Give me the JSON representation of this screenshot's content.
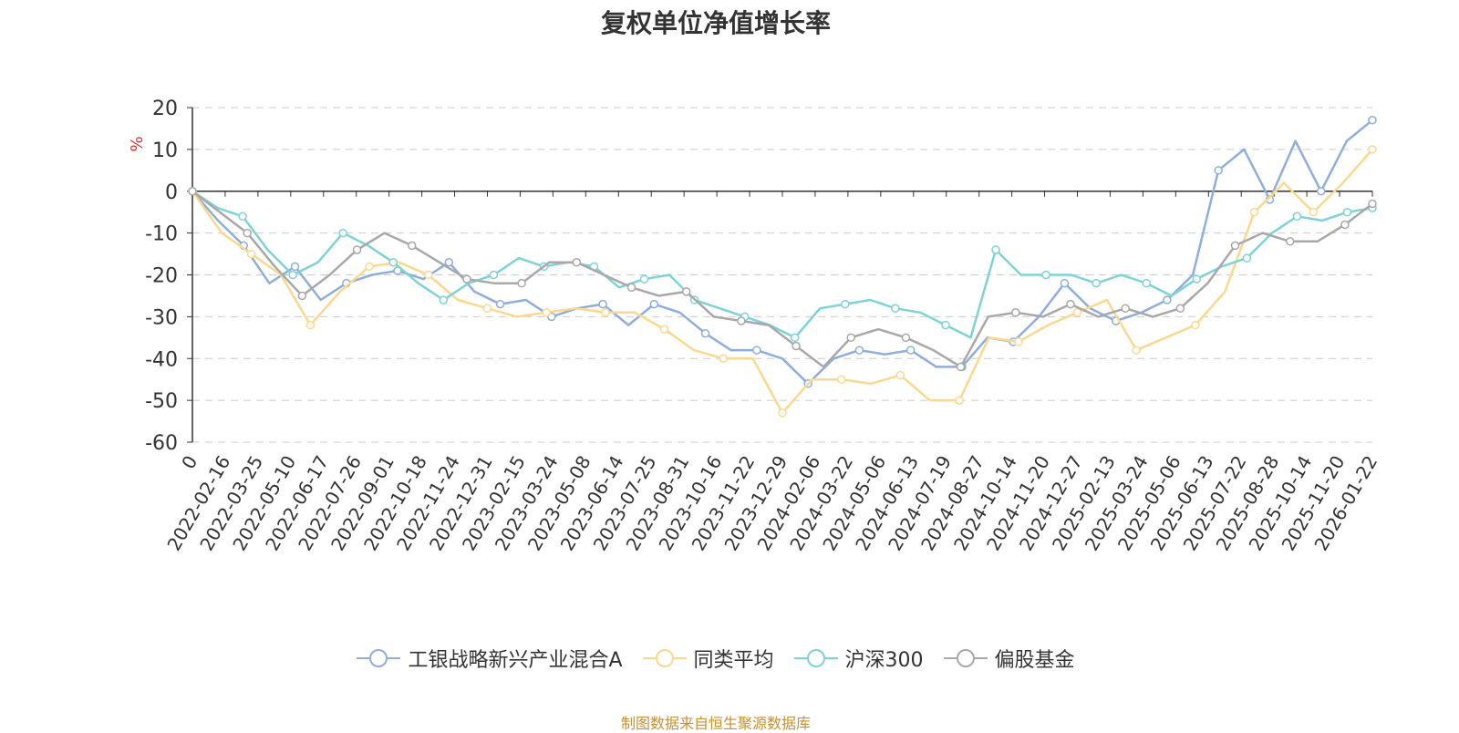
{
  "title": "复权单位净值增长率",
  "source_note": "制图数据来自恒生聚源数据库",
  "chart_data": {
    "type": "line",
    "title": "复权单位净值增长率",
    "ylabel": "%",
    "ylim": [
      -60,
      20
    ],
    "yticks": [
      20,
      10,
      0,
      -10,
      -20,
      -30,
      -40,
      -50,
      -60
    ],
    "grid": true,
    "legend_position": "bottom",
    "x_tick_labels": [
      "0",
      "2022-02-16",
      "2022-03-25",
      "2022-05-10",
      "2022-06-17",
      "2022-07-26",
      "2022-09-01",
      "2022-10-18",
      "2022-11-24",
      "2022-12-31",
      "2023-02-15",
      "2023-03-24",
      "2023-05-08",
      "2023-06-14",
      "2023-07-25",
      "2023-08-31",
      "2023-10-16",
      "2023-11-22",
      "2023-12-29",
      "2024-02-06",
      "2024-03-22",
      "2024-05-06",
      "2024-06-13",
      "2024-07-19",
      "2024-08-27",
      "2024-10-14",
      "2024-11-20",
      "2024-12-27",
      "2025-02-13",
      "2025-03-24",
      "2025-05-06",
      "2025-06-13",
      "2025-07-22",
      "2025-08-28",
      "2025-10-14",
      "2025-11-20",
      "2026-01-22"
    ],
    "series": [
      {
        "name": "工银战略新兴产业混合A",
        "color": "#8eaedd",
        "values": [
          0,
          -7,
          -13,
          -22,
          -18,
          -26,
          -22,
          -20,
          -19,
          -21,
          -17,
          -24,
          -27,
          -26,
          -30,
          -28,
          -27,
          -32,
          -27,
          -29,
          -34,
          -38,
          -38,
          -40,
          -46,
          -40,
          -38,
          -39,
          -38,
          -42,
          -42,
          -35,
          -36,
          -30,
          -22,
          -28,
          -31,
          -29,
          -26,
          -20,
          5,
          10,
          -2,
          12,
          0,
          12,
          17
        ]
      },
      {
        "name": "同类平均",
        "color": "#fcd88f",
        "values": [
          0,
          -10,
          -15,
          -20,
          -32,
          -24,
          -18,
          -17,
          -20,
          -26,
          -28,
          -30,
          -29,
          -28,
          -29,
          -29,
          -33,
          -38,
          -40,
          -40,
          -53,
          -45,
          -45,
          -46,
          -44,
          -50,
          -50,
          -35,
          -36,
          -32,
          -29,
          -26,
          -38,
          -35,
          -32,
          -24,
          -5,
          2,
          -5,
          2,
          10
        ]
      },
      {
        "name": "沪深300",
        "color": "#7dd3d6",
        "values": [
          0,
          -4,
          -6,
          -14,
          -20,
          -17,
          -10,
          -13,
          -17,
          -22,
          -26,
          -22,
          -20,
          -16,
          -18,
          -17,
          -18,
          -23,
          -21,
          -20,
          -26,
          -28,
          -30,
          -32,
          -35,
          -28,
          -27,
          -26,
          -28,
          -29,
          -32,
          -35,
          -14,
          -20,
          -20,
          -20,
          -22,
          -20,
          -22,
          -25,
          -21,
          -18,
          -16,
          -10,
          -6,
          -7,
          -5,
          -4
        ]
      },
      {
        "name": "偏股基金",
        "color": "#a8a8a8",
        "values": [
          0,
          -5,
          -10,
          -18,
          -25,
          -20,
          -14,
          -10,
          -13,
          -17,
          -21,
          -22,
          -22,
          -17,
          -17,
          -20,
          -23,
          -25,
          -24,
          -30,
          -31,
          -32,
          -37,
          -42,
          -35,
          -33,
          -35,
          -38,
          -42,
          -30,
          -29,
          -30,
          -27,
          -30,
          -28,
          -30,
          -28,
          -22,
          -13,
          -10,
          -12,
          -12,
          -8,
          -3
        ]
      }
    ]
  },
  "legend": [
    {
      "label": "工银战略新兴产业混合A",
      "color": "#8eaedd"
    },
    {
      "label": "同类平均",
      "color": "#fcd88f"
    },
    {
      "label": "沪深300",
      "color": "#7dd3d6"
    },
    {
      "label": "偏股基金",
      "color": "#a8a8a8"
    }
  ]
}
